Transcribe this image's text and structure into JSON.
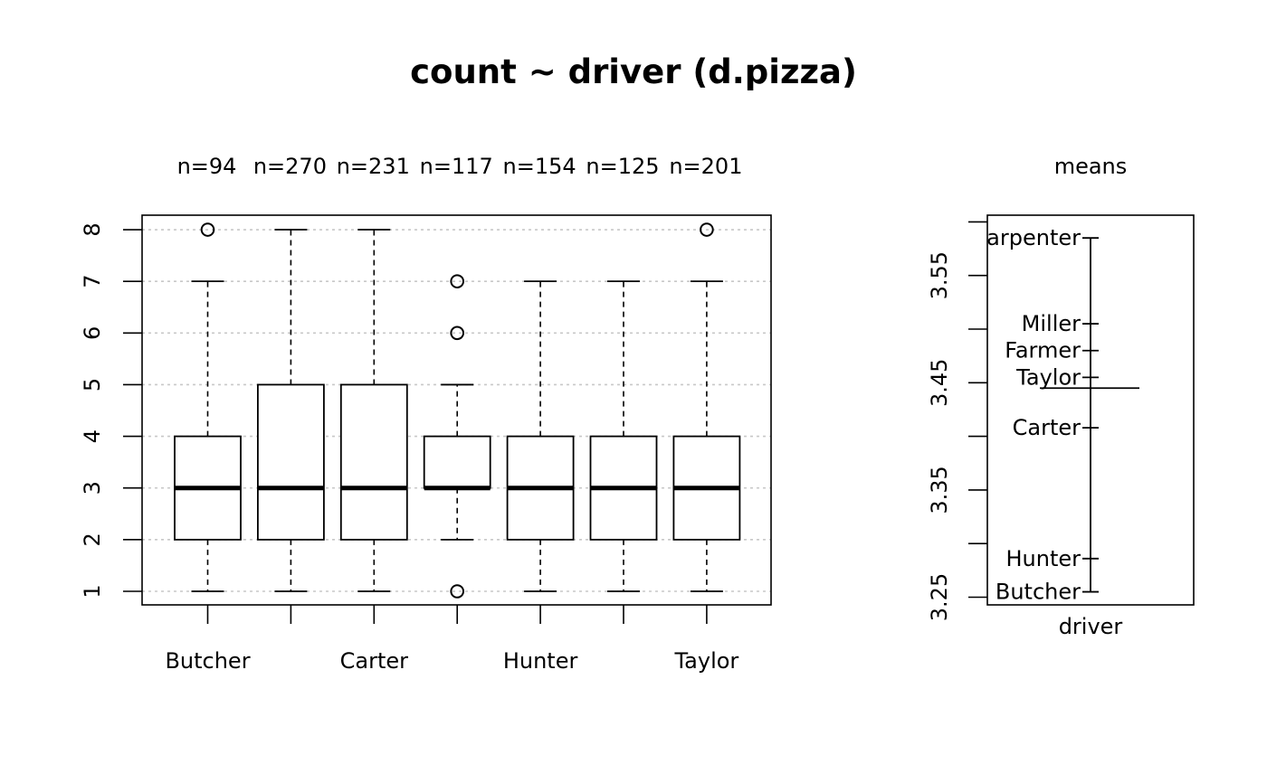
{
  "title": "count ~ driver (d.pizza)",
  "chart_data": [
    {
      "type": "box",
      "categories": [
        "Butcher",
        "Carpenter",
        "Carter",
        "Farmer",
        "Hunter",
        "Miller",
        "Taylor"
      ],
      "x_tick_labels_shown": [
        "Butcher",
        "",
        "Carter",
        "",
        "Hunter",
        "",
        "Taylor"
      ],
      "n_labels": [
        "n=94",
        "n=270",
        "n=231",
        "n=117",
        "n=154",
        "n=125",
        "n=201"
      ],
      "boxes": [
        {
          "name": "Butcher",
          "whisker_low": 1,
          "q1": 2,
          "median": 3,
          "q3": 4,
          "whisker_high": 7,
          "outliers": [
            8
          ]
        },
        {
          "name": "Carpenter",
          "whisker_low": 1,
          "q1": 2,
          "median": 3,
          "q3": 5,
          "whisker_high": 8,
          "outliers": []
        },
        {
          "name": "Carter",
          "whisker_low": 1,
          "q1": 2,
          "median": 3,
          "q3": 5,
          "whisker_high": 8,
          "outliers": []
        },
        {
          "name": "Farmer",
          "whisker_low": 2,
          "q1": 3,
          "median": 3,
          "q3": 4,
          "whisker_high": 5,
          "outliers": [
            7,
            6,
            1
          ]
        },
        {
          "name": "Hunter",
          "whisker_low": 1,
          "q1": 2,
          "median": 3,
          "q3": 4,
          "whisker_high": 7,
          "outliers": []
        },
        {
          "name": "Miller",
          "whisker_low": 1,
          "q1": 2,
          "median": 3,
          "q3": 4,
          "whisker_high": 7,
          "outliers": []
        },
        {
          "name": "Taylor",
          "whisker_low": 1,
          "q1": 2,
          "median": 3,
          "q3": 4,
          "whisker_high": 7,
          "outliers": [
            8
          ]
        }
      ],
      "y_ticks": [
        1,
        2,
        3,
        4,
        5,
        6,
        7,
        8
      ],
      "ylim": [
        0.72,
        8.28
      ],
      "grid": true
    },
    {
      "type": "dotchart",
      "title": "means",
      "xlabel": "driver",
      "points": [
        {
          "name": "Carpenter",
          "value": 3.585
        },
        {
          "name": "Miller",
          "value": 3.505
        },
        {
          "name": "Farmer",
          "value": 3.48
        },
        {
          "name": "Taylor",
          "value": 3.455
        },
        {
          "name": "Carter",
          "value": 3.408
        },
        {
          "name": "Hunter",
          "value": 3.286
        },
        {
          "name": "Butcher",
          "value": 3.255
        }
      ],
      "overall_mean": 3.445,
      "y_ticks": [
        "3.25",
        "3.35",
        "3.45",
        "3.55"
      ],
      "y_minor_ticks": [
        3.25,
        3.3,
        3.35,
        3.4,
        3.45,
        3.5,
        3.55,
        3.6
      ],
      "ylim": [
        3.244,
        3.597
      ]
    }
  ]
}
